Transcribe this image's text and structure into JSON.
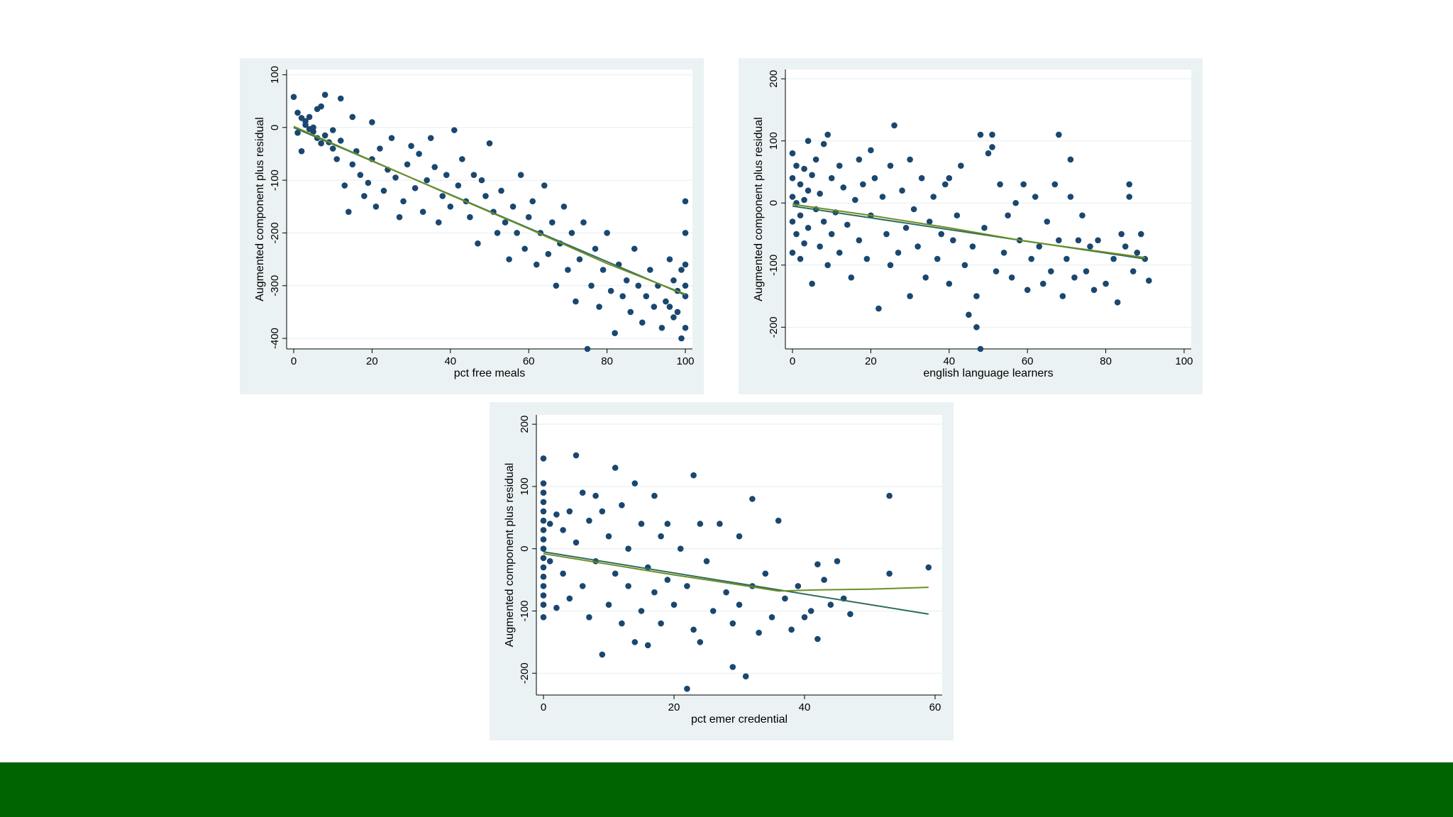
{
  "colors": {
    "point": "#1a476f",
    "fit_line": "#2e6b5e",
    "lowess": "#6b8e23",
    "panel_bg": "#eaf2f3",
    "footer": "#006400"
  },
  "chart_data": [
    {
      "type": "scatter",
      "title": "",
      "xlabel": "pct free meals",
      "ylabel": "Augmented component plus residual",
      "xlim": [
        0,
        100
      ],
      "ylim": [
        -420,
        110
      ],
      "xticks": [
        0,
        20,
        40,
        60,
        80,
        100
      ],
      "yticks": [
        100,
        0,
        -100,
        -200,
        -300,
        -400
      ],
      "linear_fit": [
        [
          0,
          0
        ],
        [
          100,
          -318
        ]
      ],
      "lowess": [
        [
          0,
          2
        ],
        [
          20,
          -63
        ],
        [
          40,
          -128
        ],
        [
          60,
          -192
        ],
        [
          80,
          -258
        ],
        [
          100,
          -316
        ]
      ],
      "points": [
        [
          0,
          58
        ],
        [
          1,
          28
        ],
        [
          1,
          -10
        ],
        [
          2,
          18
        ],
        [
          2,
          -45
        ],
        [
          3,
          12
        ],
        [
          3,
          5
        ],
        [
          4,
          20
        ],
        [
          4,
          -3
        ],
        [
          5,
          -8
        ],
        [
          5,
          0
        ],
        [
          6,
          35
        ],
        [
          6,
          -20
        ],
        [
          7,
          40
        ],
        [
          7,
          -30
        ],
        [
          8,
          62
        ],
        [
          8,
          -15
        ],
        [
          9,
          -28
        ],
        [
          10,
          -5
        ],
        [
          10,
          -40
        ],
        [
          11,
          -60
        ],
        [
          12,
          55
        ],
        [
          12,
          -25
        ],
        [
          13,
          -110
        ],
        [
          14,
          -160
        ],
        [
          15,
          20
        ],
        [
          15,
          -70
        ],
        [
          16,
          -45
        ],
        [
          17,
          -90
        ],
        [
          18,
          -130
        ],
        [
          19,
          -105
        ],
        [
          20,
          10
        ],
        [
          20,
          -60
        ],
        [
          21,
          -150
        ],
        [
          22,
          -40
        ],
        [
          23,
          -120
        ],
        [
          24,
          -80
        ],
        [
          25,
          -20
        ],
        [
          26,
          -95
        ],
        [
          27,
          -170
        ],
        [
          28,
          -140
        ],
        [
          29,
          -70
        ],
        [
          30,
          -35
        ],
        [
          31,
          -115
        ],
        [
          32,
          -50
        ],
        [
          33,
          -160
        ],
        [
          34,
          -100
        ],
        [
          35,
          -20
        ],
        [
          36,
          -75
        ],
        [
          37,
          -180
        ],
        [
          38,
          -130
        ],
        [
          39,
          -90
        ],
        [
          40,
          -150
        ],
        [
          41,
          -5
        ],
        [
          42,
          -110
        ],
        [
          43,
          -60
        ],
        [
          44,
          -140
        ],
        [
          45,
          -170
        ],
        [
          46,
          -90
        ],
        [
          47,
          -220
        ],
        [
          48,
          -100
        ],
        [
          49,
          -130
        ],
        [
          50,
          -30
        ],
        [
          51,
          -160
        ],
        [
          52,
          -200
        ],
        [
          53,
          -120
        ],
        [
          54,
          -180
        ],
        [
          55,
          -250
        ],
        [
          56,
          -150
        ],
        [
          57,
          -200
        ],
        [
          58,
          -90
        ],
        [
          59,
          -230
        ],
        [
          60,
          -170
        ],
        [
          61,
          -140
        ],
        [
          62,
          -260
        ],
        [
          63,
          -200
        ],
        [
          64,
          -110
        ],
        [
          65,
          -240
        ],
        [
          66,
          -180
        ],
        [
          67,
          -300
        ],
        [
          68,
          -220
        ],
        [
          69,
          -150
        ],
        [
          70,
          -270
        ],
        [
          71,
          -200
        ],
        [
          72,
          -330
        ],
        [
          73,
          -250
        ],
        [
          74,
          -180
        ],
        [
          75,
          -420
        ],
        [
          76,
          -300
        ],
        [
          77,
          -230
        ],
        [
          78,
          -340
        ],
        [
          79,
          -270
        ],
        [
          80,
          -200
        ],
        [
          81,
          -310
        ],
        [
          82,
          -390
        ],
        [
          83,
          -260
        ],
        [
          84,
          -320
        ],
        [
          85,
          -290
        ],
        [
          86,
          -350
        ],
        [
          87,
          -230
        ],
        [
          88,
          -300
        ],
        [
          89,
          -370
        ],
        [
          90,
          -320
        ],
        [
          91,
          -270
        ],
        [
          92,
          -340
        ],
        [
          93,
          -300
        ],
        [
          94,
          -380
        ],
        [
          95,
          -330
        ],
        [
          96,
          -250
        ],
        [
          97,
          -360
        ],
        [
          98,
          -310
        ],
        [
          99,
          -400
        ],
        [
          100,
          -140
        ],
        [
          100,
          -200
        ],
        [
          100,
          -260
        ],
        [
          100,
          -320
        ],
        [
          100,
          -380
        ],
        [
          100,
          -300
        ],
        [
          99,
          -270
        ],
        [
          98,
          -350
        ],
        [
          97,
          -290
        ],
        [
          96,
          -340
        ]
      ]
    },
    {
      "type": "scatter",
      "title": "",
      "xlabel": "english language learners",
      "ylabel": "Augmented component plus residual",
      "xlim": [
        0,
        100
      ],
      "ylim": [
        -235,
        215
      ],
      "xticks": [
        0,
        20,
        40,
        60,
        80,
        100
      ],
      "yticks": [
        200,
        100,
        0,
        -100,
        -200
      ],
      "linear_fit": [
        [
          0,
          -5
        ],
        [
          90,
          -90
        ]
      ],
      "lowess": [
        [
          0,
          -2
        ],
        [
          20,
          -20
        ],
        [
          40,
          -40
        ],
        [
          60,
          -62
        ],
        [
          90,
          -88
        ]
      ],
      "points": [
        [
          0,
          80
        ],
        [
          0,
          40
        ],
        [
          0,
          10
        ],
        [
          0,
          -30
        ],
        [
          0,
          -80
        ],
        [
          1,
          60
        ],
        [
          1,
          0
        ],
        [
          1,
          -50
        ],
        [
          2,
          30
        ],
        [
          2,
          -20
        ],
        [
          2,
          -90
        ],
        [
          3,
          55
        ],
        [
          3,
          5
        ],
        [
          3,
          -65
        ],
        [
          4,
          100
        ],
        [
          4,
          20
        ],
        [
          4,
          -40
        ],
        [
          5,
          -130
        ],
        [
          5,
          45
        ],
        [
          6,
          -10
        ],
        [
          6,
          70
        ],
        [
          7,
          15
        ],
        [
          7,
          -70
        ],
        [
          8,
          95
        ],
        [
          8,
          -30
        ],
        [
          9,
          110
        ],
        [
          9,
          -100
        ],
        [
          10,
          40
        ],
        [
          10,
          -50
        ],
        [
          11,
          -15
        ],
        [
          12,
          60
        ],
        [
          12,
          -80
        ],
        [
          13,
          25
        ],
        [
          14,
          -35
        ],
        [
          15,
          -120
        ],
        [
          16,
          5
        ],
        [
          17,
          70
        ],
        [
          17,
          -60
        ],
        [
          18,
          30
        ],
        [
          19,
          -90
        ],
        [
          20,
          85
        ],
        [
          20,
          -20
        ],
        [
          21,
          40
        ],
        [
          22,
          -170
        ],
        [
          23,
          10
        ],
        [
          24,
          -50
        ],
        [
          25,
          60
        ],
        [
          25,
          -100
        ],
        [
          26,
          125
        ],
        [
          27,
          -80
        ],
        [
          28,
          20
        ],
        [
          29,
          -40
        ],
        [
          30,
          70
        ],
        [
          30,
          -150
        ],
        [
          31,
          -10
        ],
        [
          32,
          -70
        ],
        [
          33,
          40
        ],
        [
          34,
          -120
        ],
        [
          35,
          -30
        ],
        [
          36,
          10
        ],
        [
          37,
          -90
        ],
        [
          38,
          -50
        ],
        [
          39,
          30
        ],
        [
          40,
          -130
        ],
        [
          40,
          40
        ],
        [
          41,
          -60
        ],
        [
          42,
          -20
        ],
        [
          43,
          60
        ],
        [
          44,
          -100
        ],
        [
          45,
          -180
        ],
        [
          46,
          -70
        ],
        [
          47,
          -150
        ],
        [
          47,
          -200
        ],
        [
          48,
          -235
        ],
        [
          48,
          110
        ],
        [
          49,
          -40
        ],
        [
          50,
          80
        ],
        [
          51,
          110
        ],
        [
          51,
          90
        ],
        [
          52,
          -110
        ],
        [
          53,
          30
        ],
        [
          54,
          -80
        ],
        [
          55,
          -20
        ],
        [
          56,
          -120
        ],
        [
          57,
          0
        ],
        [
          58,
          -60
        ],
        [
          59,
          30
        ],
        [
          60,
          -140
        ],
        [
          61,
          -90
        ],
        [
          62,
          10
        ],
        [
          63,
          -70
        ],
        [
          64,
          -130
        ],
        [
          65,
          -30
        ],
        [
          66,
          -110
        ],
        [
          67,
          30
        ],
        [
          68,
          110
        ],
        [
          68,
          -60
        ],
        [
          69,
          -150
        ],
        [
          70,
          -90
        ],
        [
          71,
          70
        ],
        [
          71,
          10
        ],
        [
          72,
          -120
        ],
        [
          73,
          -60
        ],
        [
          74,
          -20
        ],
        [
          75,
          -110
        ],
        [
          76,
          -70
        ],
        [
          77,
          -140
        ],
        [
          78,
          -60
        ],
        [
          80,
          -130
        ],
        [
          82,
          -90
        ],
        [
          83,
          -160
        ],
        [
          84,
          -50
        ],
        [
          85,
          -70
        ],
        [
          86,
          30
        ],
        [
          86,
          10
        ],
        [
          87,
          -110
        ],
        [
          88,
          -80
        ],
        [
          89,
          -50
        ],
        [
          90,
          -90
        ],
        [
          91,
          -125
        ]
      ]
    },
    {
      "type": "scatter",
      "title": "",
      "xlabel": "pct emer credential",
      "ylabel": "Augmented component plus residual",
      "xlim": [
        0,
        60
      ],
      "ylim": [
        -235,
        215
      ],
      "xticks": [
        0,
        20,
        40,
        60
      ],
      "yticks": [
        200,
        100,
        0,
        -100,
        -200
      ],
      "linear_fit": [
        [
          0,
          -5
        ],
        [
          59,
          -105
        ]
      ],
      "lowess": [
        [
          0,
          -8
        ],
        [
          10,
          -25
        ],
        [
          20,
          -42
        ],
        [
          30,
          -58
        ],
        [
          36,
          -68
        ],
        [
          42,
          -66
        ],
        [
          50,
          -65
        ],
        [
          59,
          -62
        ]
      ],
      "points": [
        [
          0,
          145
        ],
        [
          0,
          105
        ],
        [
          0,
          90
        ],
        [
          0,
          75
        ],
        [
          0,
          60
        ],
        [
          0,
          45
        ],
        [
          0,
          30
        ],
        [
          0,
          15
        ],
        [
          0,
          0
        ],
        [
          0,
          -15
        ],
        [
          0,
          -30
        ],
        [
          0,
          -45
        ],
        [
          0,
          -60
        ],
        [
          0,
          -75
        ],
        [
          0,
          -90
        ],
        [
          0,
          -110
        ],
        [
          1,
          40
        ],
        [
          1,
          -20
        ],
        [
          2,
          55
        ],
        [
          2,
          -95
        ],
        [
          3,
          30
        ],
        [
          3,
          -40
        ],
        [
          4,
          60
        ],
        [
          4,
          -80
        ],
        [
          5,
          150
        ],
        [
          5,
          10
        ],
        [
          6,
          90
        ],
        [
          6,
          -60
        ],
        [
          7,
          45
        ],
        [
          7,
          -110
        ],
        [
          8,
          85
        ],
        [
          8,
          -20
        ],
        [
          9,
          -170
        ],
        [
          9,
          60
        ],
        [
          10,
          20
        ],
        [
          10,
          -90
        ],
        [
          11,
          130
        ],
        [
          11,
          -40
        ],
        [
          12,
          70
        ],
        [
          12,
          -120
        ],
        [
          13,
          0
        ],
        [
          13,
          -60
        ],
        [
          14,
          105
        ],
        [
          14,
          -150
        ],
        [
          15,
          40
        ],
        [
          15,
          -100
        ],
        [
          16,
          -30
        ],
        [
          16,
          -155
        ],
        [
          17,
          85
        ],
        [
          17,
          -70
        ],
        [
          18,
          20
        ],
        [
          18,
          -120
        ],
        [
          19,
          -50
        ],
        [
          19,
          40
        ],
        [
          20,
          -90
        ],
        [
          21,
          0
        ],
        [
          22,
          -225
        ],
        [
          22,
          -60
        ],
        [
          23,
          118
        ],
        [
          23,
          -130
        ],
        [
          24,
          40
        ],
        [
          24,
          -150
        ],
        [
          25,
          -20
        ],
        [
          26,
          -100
        ],
        [
          27,
          40
        ],
        [
          28,
          -70
        ],
        [
          29,
          -120
        ],
        [
          29,
          -190
        ],
        [
          30,
          20
        ],
        [
          30,
          -90
        ],
        [
          31,
          -205
        ],
        [
          32,
          80
        ],
        [
          32,
          -60
        ],
        [
          33,
          -135
        ],
        [
          34,
          -40
        ],
        [
          35,
          -110
        ],
        [
          36,
          45
        ],
        [
          37,
          -80
        ],
        [
          38,
          -130
        ],
        [
          39,
          -60
        ],
        [
          40,
          -110
        ],
        [
          41,
          -100
        ],
        [
          42,
          -25
        ],
        [
          42,
          -145
        ],
        [
          43,
          -50
        ],
        [
          44,
          -90
        ],
        [
          45,
          -20
        ],
        [
          46,
          -80
        ],
        [
          47,
          -105
        ],
        [
          53,
          85
        ],
        [
          53,
          -40
        ],
        [
          59,
          -30
        ]
      ]
    }
  ]
}
